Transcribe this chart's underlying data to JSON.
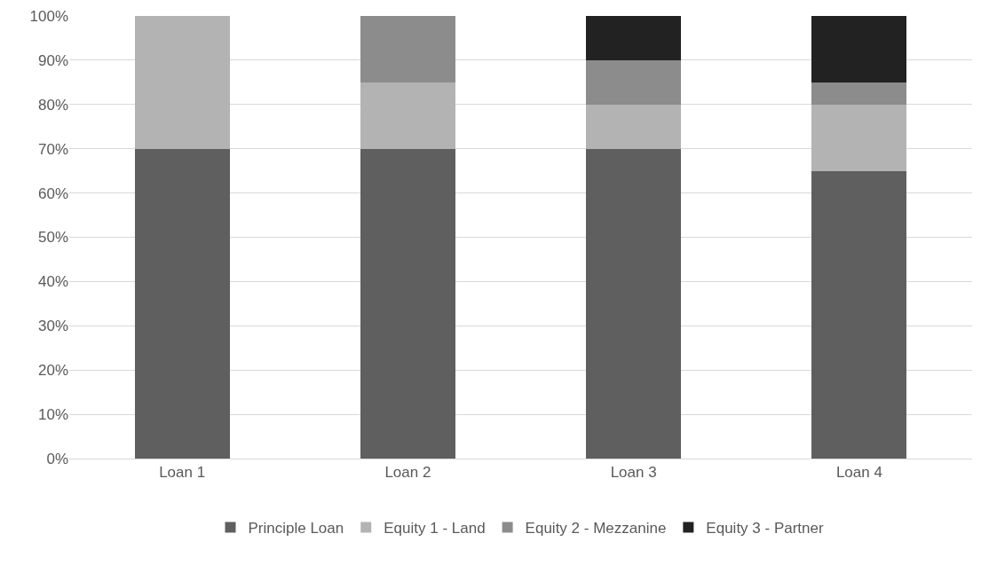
{
  "chart_data": {
    "type": "bar",
    "stacked": true,
    "categories": [
      "Loan 1",
      "Loan 2",
      "Loan 3",
      "Loan 4"
    ],
    "series": [
      {
        "name": "Principle Loan",
        "color": "#5f5f5f",
        "values": [
          70,
          70,
          70,
          65
        ]
      },
      {
        "name": "Equity 1 - Land",
        "color": "#b3b3b3",
        "values": [
          30,
          15,
          10,
          15
        ]
      },
      {
        "name": "Equity 2 - Mezzanine",
        "color": "#8c8c8c",
        "values": [
          0,
          15,
          10,
          5
        ]
      },
      {
        "name": "Equity 3 - Partner",
        "color": "#222222",
        "values": [
          0,
          0,
          10,
          15
        ]
      }
    ],
    "ylim": [
      0,
      100
    ],
    "yticks": [
      {
        "value": 0,
        "label": "0%"
      },
      {
        "value": 10,
        "label": "10%"
      },
      {
        "value": 20,
        "label": "20%"
      },
      {
        "value": 30,
        "label": "30%"
      },
      {
        "value": 40,
        "label": "40%"
      },
      {
        "value": 50,
        "label": "50%"
      },
      {
        "value": 60,
        "label": "60%"
      },
      {
        "value": 70,
        "label": "70%"
      },
      {
        "value": 80,
        "label": "80%"
      },
      {
        "value": 90,
        "label": "90%"
      },
      {
        "value": 100,
        "label": "100%"
      }
    ],
    "grid": "y",
    "legend": "bottom"
  }
}
